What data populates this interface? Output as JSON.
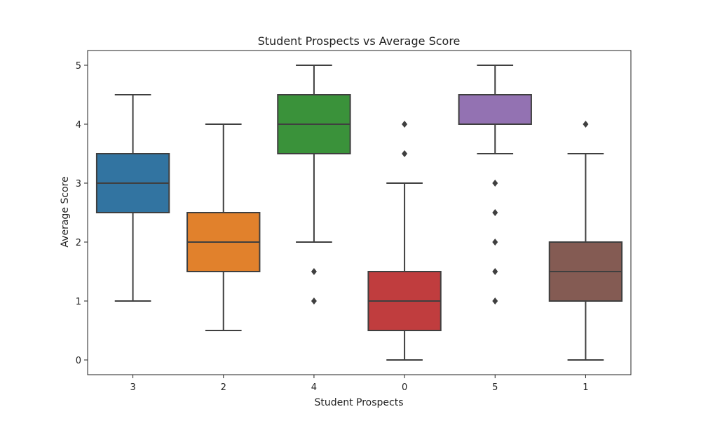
{
  "chart_data": {
    "type": "box",
    "title": "Student Prospects vs Average Score",
    "xlabel": "Student Prospects",
    "ylabel": "Average Score",
    "ylim": [
      -0.25,
      5.25
    ],
    "yticks": [
      0,
      1,
      2,
      3,
      4,
      5
    ],
    "grid": false,
    "categories": [
      "3",
      "2",
      "4",
      "0",
      "5",
      "1"
    ],
    "boxes": [
      {
        "category": "3",
        "q1": 2.5,
        "median": 3.0,
        "q3": 3.5,
        "whisker_low": 1.0,
        "whisker_high": 4.5,
        "outliers": [],
        "color": "#3274a1"
      },
      {
        "category": "2",
        "q1": 1.5,
        "median": 2.0,
        "q3": 2.5,
        "whisker_low": 0.5,
        "whisker_high": 4.0,
        "outliers": [],
        "color": "#e1812c"
      },
      {
        "category": "4",
        "q1": 3.5,
        "median": 4.0,
        "q3": 4.5,
        "whisker_low": 2.0,
        "whisker_high": 5.0,
        "outliers": [
          1.0,
          1.5
        ],
        "color": "#3a923a"
      },
      {
        "category": "0",
        "q1": 0.5,
        "median": 1.0,
        "q3": 1.5,
        "whisker_low": 0.0,
        "whisker_high": 3.0,
        "outliers": [
          3.5,
          4.0
        ],
        "color": "#c03d3e"
      },
      {
        "category": "5",
        "q1": 4.0,
        "median": 4.5,
        "q3": 4.5,
        "whisker_low": 3.5,
        "whisker_high": 5.0,
        "outliers": [
          1.0,
          1.5,
          2.0,
          2.5,
          3.0
        ],
        "color": "#9372b2"
      },
      {
        "category": "1",
        "q1": 1.0,
        "median": 1.5,
        "q3": 2.0,
        "whisker_low": 0.0,
        "whisker_high": 3.5,
        "outliers": [
          4.0
        ],
        "color": "#845b53"
      }
    ]
  }
}
